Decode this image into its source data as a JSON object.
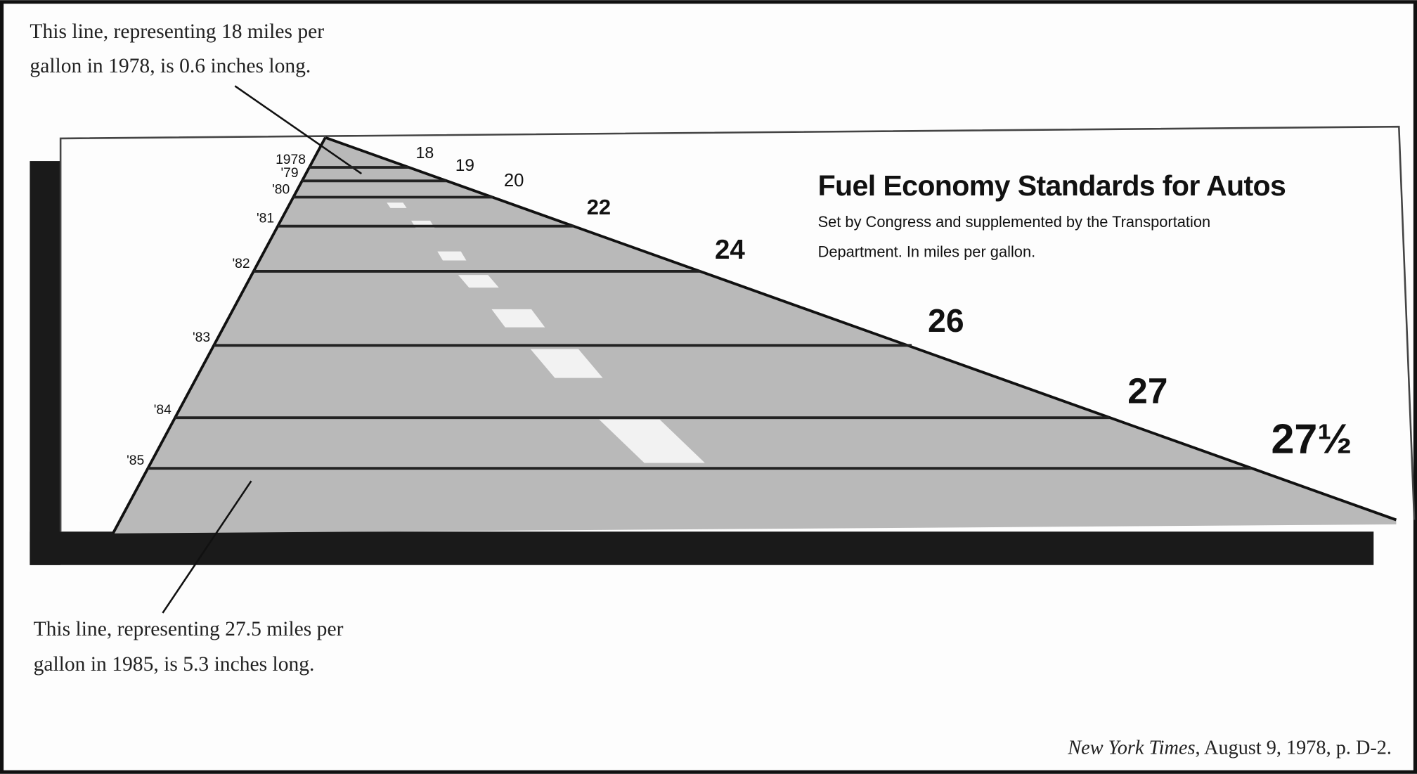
{
  "chart_data": {
    "type": "road",
    "title": "Fuel Economy Standards for Autos",
    "subtitle": [
      "Set by Congress and supplemented by the Transportation",
      "Department. In miles per gallon."
    ],
    "categories": [
      "1978",
      "'79",
      "'80",
      "'81",
      "'82",
      "'83",
      "'84",
      "'85"
    ],
    "values": [
      18,
      19,
      20,
      22,
      24,
      26,
      27,
      27.5
    ],
    "value_labels": [
      "18",
      "19",
      "20",
      "22",
      "24",
      "26",
      "27",
      "27½"
    ],
    "annotations": [
      [
        "This line, representing 18 miles per",
        "gallon in 1978, is 0.6 inches long."
      ],
      [
        "This line, representing 27.5 miles per",
        "gallon in 1985, is 5.3 inches long."
      ]
    ],
    "source": [
      "New York Times",
      ", August 9, 1978, p. D-2."
    ],
    "color": "#222222"
  }
}
